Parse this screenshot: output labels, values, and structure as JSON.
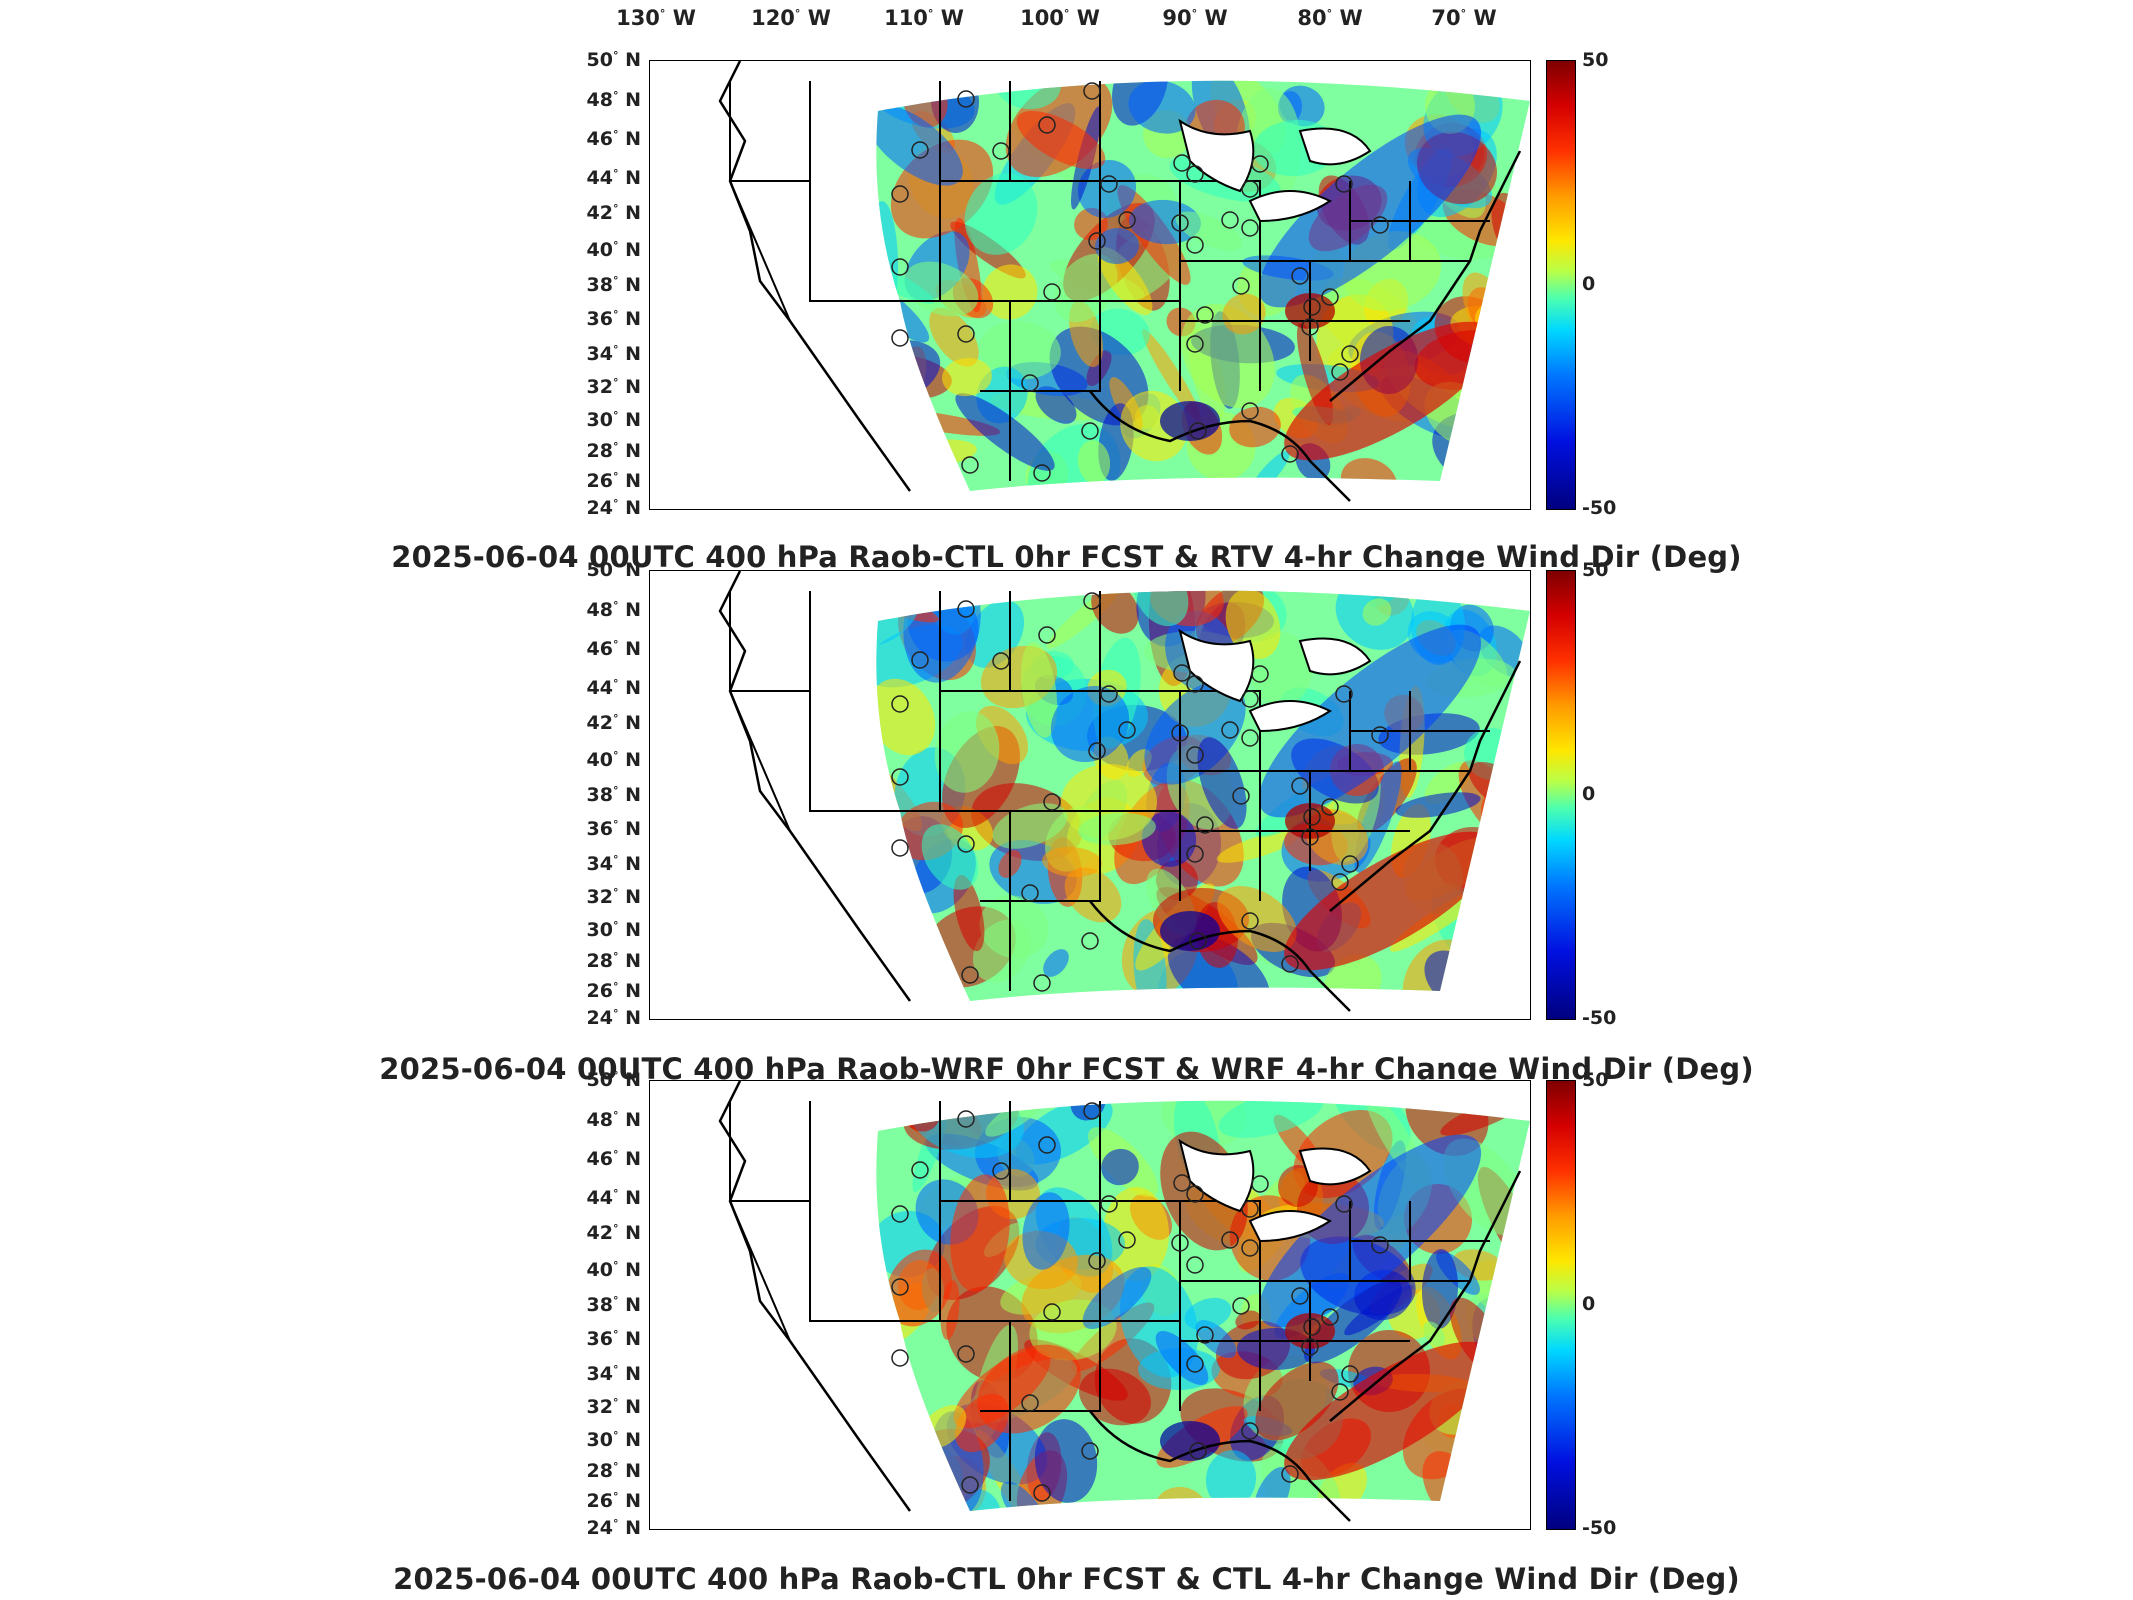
{
  "lon_labels": [
    {
      "deg": "130",
      "hemi": "W"
    },
    {
      "deg": "120",
      "hemi": "W"
    },
    {
      "deg": "110",
      "hemi": "W"
    },
    {
      "deg": "100",
      "hemi": "W"
    },
    {
      "deg": "90",
      "hemi": "W"
    },
    {
      "deg": "80",
      "hemi": "W"
    },
    {
      "deg": "70",
      "hemi": "W"
    }
  ],
  "lat_labels": [
    {
      "deg": "50",
      "hemi": "N"
    },
    {
      "deg": "48",
      "hemi": "N"
    },
    {
      "deg": "46",
      "hemi": "N"
    },
    {
      "deg": "44",
      "hemi": "N"
    },
    {
      "deg": "42",
      "hemi": "N"
    },
    {
      "deg": "40",
      "hemi": "N"
    },
    {
      "deg": "38",
      "hemi": "N"
    },
    {
      "deg": "36",
      "hemi": "N"
    },
    {
      "deg": "34",
      "hemi": "N"
    },
    {
      "deg": "32",
      "hemi": "N"
    },
    {
      "deg": "30",
      "hemi": "N"
    },
    {
      "deg": "28",
      "hemi": "N"
    },
    {
      "deg": "26",
      "hemi": "N"
    },
    {
      "deg": "24",
      "hemi": "N"
    }
  ],
  "colorbar": {
    "max_label": "50",
    "mid_label": "0",
    "min_label": "-50",
    "colormap": "jet"
  },
  "panels": [
    {
      "title": "2025-06-04 00UTC 400 hPa Raob-CTL 0hr FCST & RTV 4-hr Change Wind Dir (Deg)"
    },
    {
      "title": "2025-06-04 00UTC 400 hPa Raob-WRF 0hr FCST & WRF 4-hr Change Wind Dir (Deg)"
    },
    {
      "title": "2025-06-04 00UTC 400 hPa Raob-CTL 0hr FCST & CTL 4-hr Change Wind Dir (Deg)"
    }
  ]
}
